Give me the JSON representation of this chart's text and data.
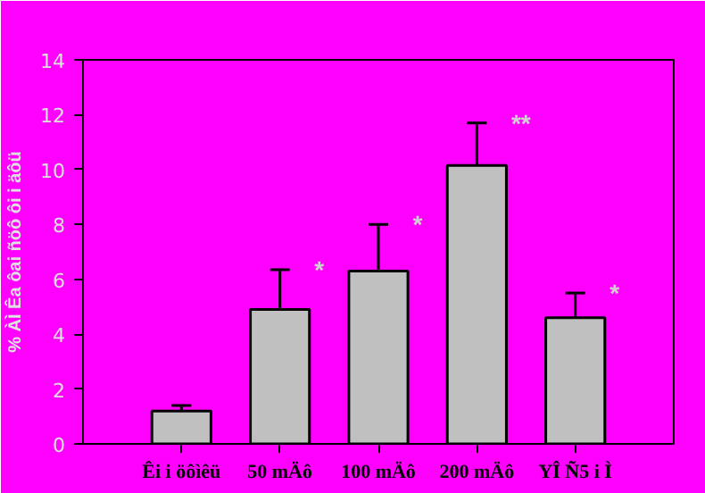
{
  "chart_data": {
    "type": "bar",
    "ylabel": "% ÀÌ Êa ôai ñöô ôi i äôü",
    "categories": [
      "Êi i öôìêü",
      "50 mÄô",
      "100 mÄô",
      "200 mÄô",
      "YÎ Ñ5 i Ì"
    ],
    "values": [
      1.2,
      4.9,
      6.3,
      10.15,
      4.6
    ],
    "errors": [
      0.2,
      1.45,
      1.7,
      1.55,
      0.9
    ],
    "color": "#c0c0c0",
    "ylim": [
      0,
      14
    ],
    "yticks": [
      0,
      2,
      4,
      6,
      8,
      10,
      12,
      14
    ],
    "grid": false,
    "annotations": [
      {
        "text": "*",
        "x": "50 mÄô",
        "y": 6.35
      },
      {
        "text": "*",
        "x": "100 mÄô",
        "y": 8.0
      },
      {
        "text": "**",
        "x": "200 mÄô",
        "y": 11.7
      },
      {
        "text": "*",
        "x": "YÎ Ñ5 i Ì",
        "y": 5.5
      }
    ]
  }
}
